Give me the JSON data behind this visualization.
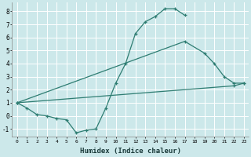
{
  "title": "",
  "xlabel": "Humidex (Indice chaleur)",
  "bg_color": "#cce8ea",
  "grid_color": "#ffffff",
  "line_color": "#2e7d72",
  "xlim": [
    -0.5,
    23.5
  ],
  "ylim": [
    -1.6,
    8.7
  ],
  "xticks": [
    0,
    1,
    2,
    3,
    4,
    5,
    6,
    7,
    8,
    9,
    10,
    11,
    12,
    13,
    14,
    15,
    16,
    17,
    18,
    19,
    20,
    21,
    22,
    23
  ],
  "yticks": [
    -1,
    0,
    1,
    2,
    3,
    4,
    5,
    6,
    7,
    8
  ],
  "lines": [
    {
      "x": [
        0,
        1,
        2,
        3,
        4,
        5,
        6,
        7,
        8,
        9,
        10,
        11,
        12,
        13,
        14,
        15,
        16,
        17
      ],
      "y": [
        1.0,
        0.6,
        0.1,
        0.0,
        -0.2,
        -0.3,
        -1.3,
        -1.1,
        -1.0,
        0.6,
        2.5,
        4.0,
        6.3,
        7.2,
        7.6,
        8.2,
        8.2,
        7.7
      ]
    },
    {
      "x": [
        0,
        17,
        19,
        20,
        21,
        22,
        23
      ],
      "y": [
        1.0,
        5.7,
        4.8,
        4.0,
        3.0,
        2.5,
        2.5
      ]
    },
    {
      "x": [
        0,
        22,
        23
      ],
      "y": [
        1.0,
        2.3,
        2.5
      ]
    }
  ]
}
